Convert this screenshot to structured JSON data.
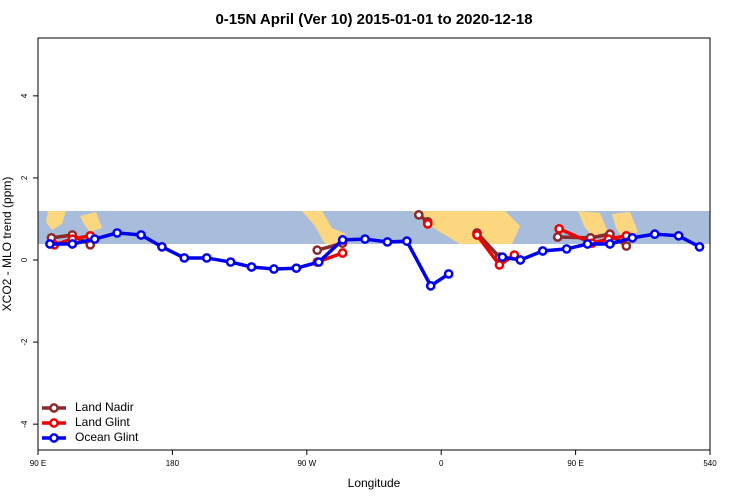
{
  "chart_data": {
    "type": "line",
    "title": "0-15N April (Ver 10)   2015-01-01 to 2020-12-18",
    "x_label": "Longitude",
    "y_label": "XCO2 - MLO trend (ppm)",
    "xlim": [
      90,
      540
    ],
    "ylim": [
      -4.63,
      5.41
    ],
    "xticks": [
      {
        "value": 90,
        "label": "90 E"
      },
      180,
      {
        "value": 270,
        "label": "90 W"
      },
      {
        "value": 360,
        "label": "0"
      },
      {
        "value": 450,
        "label": "90 E"
      },
      540
    ],
    "yticks": [
      -4,
      -2,
      0,
      2,
      4
    ],
    "legend": "bottom-left",
    "series": [
      {
        "name": "Land Nadir",
        "color": "#8b2a2a",
        "x": [
          99,
          113,
          125,
          200,
          277,
          294,
          320,
          345,
          351,
          368,
          384,
          399,
          420,
          438,
          460,
          473,
          484
        ],
        "values": [
          0.54,
          0.61,
          0.37,
          null,
          0.24,
          0.41,
          null,
          1.1,
          0.93,
          null,
          0.66,
          0.07,
          null,
          0.56,
          0.54,
          0.63,
          0.34
        ]
      },
      {
        "name": "Land Glint",
        "color": "#ee0000",
        "x": [
          101,
          113,
          125,
          200,
          277,
          294,
          320,
          351,
          368,
          384,
          399,
          409,
          420,
          439,
          461,
          472,
          484
        ],
        "values": [
          0.37,
          0.51,
          0.59,
          null,
          -0.05,
          0.17,
          null,
          0.88,
          null,
          0.61,
          -0.12,
          0.12,
          null,
          0.76,
          0.41,
          0.51,
          0.59
        ]
      },
      {
        "name": "Ocean Glint",
        "color": "#0000ee",
        "x": [
          98,
          113,
          128,
          143,
          159,
          173,
          188,
          203,
          219,
          233,
          248,
          263,
          278,
          294,
          309,
          324,
          337,
          353,
          365,
          383,
          401,
          413,
          428,
          444,
          458,
          473,
          488,
          503,
          519,
          533
        ],
        "values": [
          0.39,
          0.39,
          0.51,
          0.66,
          0.61,
          0.32,
          0.05,
          0.05,
          -0.05,
          -0.17,
          -0.22,
          -0.2,
          -0.05,
          0.49,
          0.51,
          0.44,
          0.46,
          -0.63,
          -0.34,
          null,
          0.07,
          0.0,
          0.22,
          0.27,
          0.39,
          0.39,
          0.54,
          0.63,
          0.59,
          0.32
        ]
      }
    ]
  }
}
